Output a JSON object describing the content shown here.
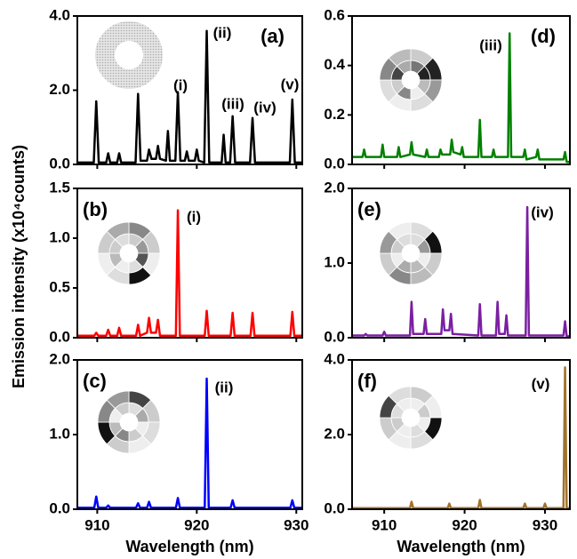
{
  "y_label": "Emission intensity (x10⁴counts)",
  "chart_data": [
    {
      "type": "line",
      "panel_label": "(a)",
      "color": "#000000",
      "xlim": [
        908,
        930.6
      ],
      "xticks": [
        910,
        920,
        930
      ],
      "ylim": [
        0,
        4
      ],
      "yticks": [
        {
          "value": 0,
          "label": "0.0"
        },
        {
          "value": 2,
          "label": "2.0"
        },
        {
          "value": 4,
          "label": "4.0"
        }
      ],
      "annotations": [
        "(i)",
        "(ii)",
        "(iii)",
        "(iv)",
        "(v)"
      ],
      "x": [
        908.0,
        909.65,
        909.9,
        910.15,
        910.9,
        911.1,
        911.3,
        912.0,
        912.2,
        912.4,
        913.85,
        914.1,
        914.35,
        915.0,
        915.2,
        915.45,
        915.9,
        916.1,
        916.3,
        916.9,
        917.1,
        917.3,
        917.85,
        918.1,
        918.35,
        918.8,
        919.0,
        919.2,
        919.8,
        920.0,
        920.2,
        920.75,
        921.0,
        921.25,
        922.5,
        922.7,
        922.9,
        923.35,
        923.6,
        923.85,
        925.35,
        925.6,
        925.85,
        929.35,
        929.6,
        929.85,
        930.6
      ],
      "values": [
        0.05,
        0.05,
        1.7,
        0.05,
        0.05,
        0.3,
        0.05,
        0.05,
        0.3,
        0.05,
        0.05,
        1.9,
        0.1,
        0.1,
        0.4,
        0.15,
        0.15,
        0.5,
        0.15,
        0.1,
        0.9,
        0.1,
        0.1,
        1.95,
        0.1,
        0.1,
        0.35,
        0.1,
        0.1,
        0.4,
        0.1,
        0.05,
        3.6,
        0.05,
        0.05,
        0.8,
        0.05,
        0.05,
        1.3,
        0.05,
        0.05,
        1.25,
        0.05,
        0.05,
        1.75,
        0.05,
        0.05
      ]
    },
    {
      "type": "line",
      "panel_label": "(b)",
      "color": "#ff0000",
      "xlim": [
        908,
        930.6
      ],
      "xticks": [
        910,
        920,
        930
      ],
      "ylim": [
        0,
        1.5
      ],
      "yticks": [
        {
          "value": 0,
          "label": "0.0"
        },
        0.5,
        {
          "value": 1,
          "label": "1.0"
        },
        1.5
      ],
      "annotations": [
        "(i)"
      ],
      "x": [
        908,
        909.7,
        909.9,
        910.1,
        910.9,
        911.1,
        911.3,
        912.0,
        912.2,
        912.4,
        913.9,
        914.1,
        914.3,
        915.0,
        915.2,
        915.4,
        915.9,
        916.1,
        916.3,
        917.9,
        918.1,
        918.3,
        920.8,
        921.0,
        921.2,
        923.4,
        923.6,
        923.8,
        925.4,
        925.6,
        925.8,
        929.4,
        929.6,
        929.8,
        930.6
      ],
      "values": [
        0.02,
        0.02,
        0.05,
        0.02,
        0.02,
        0.08,
        0.02,
        0.02,
        0.1,
        0.02,
        0.02,
        0.13,
        0.02,
        0.05,
        0.2,
        0.05,
        0.05,
        0.18,
        0.02,
        0.02,
        1.28,
        0.02,
        0.02,
        0.27,
        0.02,
        0.02,
        0.25,
        0.02,
        0.02,
        0.25,
        0.02,
        0.02,
        0.26,
        0.02,
        0.02
      ]
    },
    {
      "type": "line",
      "panel_label": "(c)",
      "color": "#0000ff",
      "xlim": [
        908,
        930.6
      ],
      "xticks": [
        910,
        920,
        930
      ],
      "x_label": "Wavelength (nm)",
      "ylim": [
        0,
        2
      ],
      "yticks": [
        {
          "value": 0,
          "label": "0.0"
        },
        {
          "value": 1,
          "label": "1.0"
        },
        {
          "value": 2,
          "label": "2.0"
        }
      ],
      "annotations": [
        "(ii)"
      ],
      "x": [
        908,
        909.7,
        909.9,
        910.1,
        910.9,
        911.1,
        911.3,
        913.9,
        914.1,
        914.3,
        915.0,
        915.2,
        915.4,
        917.9,
        918.1,
        918.3,
        920.8,
        921.0,
        921.2,
        923.4,
        923.6,
        923.8,
        929.4,
        929.6,
        929.8,
        930.6
      ],
      "values": [
        0.02,
        0.02,
        0.17,
        0.02,
        0.02,
        0.05,
        0.02,
        0.02,
        0.08,
        0.02,
        0.02,
        0.1,
        0.02,
        0.02,
        0.15,
        0.02,
        0.02,
        1.75,
        0.02,
        0.02,
        0.12,
        0.02,
        0.02,
        0.12,
        0.02,
        0.02
      ]
    },
    {
      "type": "line",
      "panel_label": "(d)",
      "color": "#008000",
      "xlim": [
        906,
        933.1
      ],
      "xticks": [
        910,
        920,
        930
      ],
      "ylim": [
        0,
        0.6
      ],
      "yticks": [
        {
          "value": 0,
          "label": "0.0"
        },
        0.2,
        0.4,
        0.6
      ],
      "annotations": [
        "(iii)"
      ],
      "x": [
        906,
        907.3,
        907.5,
        907.7,
        909.6,
        909.8,
        910.0,
        911.6,
        911.8,
        912.0,
        913.2,
        913.4,
        913.6,
        915.1,
        915.3,
        915.5,
        916.8,
        917.0,
        917.2,
        918.2,
        918.4,
        918.6,
        919.5,
        919.7,
        919.9,
        921.7,
        921.9,
        922.1,
        923.4,
        923.6,
        923.8,
        925.4,
        925.6,
        925.8,
        927.3,
        927.5,
        927.7,
        928.9,
        929.1,
        929.3,
        932.3,
        932.5,
        932.7,
        933.1
      ],
      "values": [
        0.03,
        0.03,
        0.06,
        0.03,
        0.03,
        0.08,
        0.03,
        0.03,
        0.07,
        0.03,
        0.04,
        0.09,
        0.04,
        0.03,
        0.06,
        0.03,
        0.03,
        0.06,
        0.04,
        0.04,
        0.1,
        0.05,
        0.04,
        0.07,
        0.03,
        0.03,
        0.18,
        0.03,
        0.03,
        0.06,
        0.03,
        0.03,
        0.53,
        0.03,
        0.03,
        0.06,
        0.02,
        0.03,
        0.06,
        0.02,
        0.02,
        0.05,
        0.01,
        0.01
      ]
    },
    {
      "type": "line",
      "panel_label": "(e)",
      "color": "#7b1fa2",
      "xlim": [
        906,
        933.1
      ],
      "xticks": [
        910,
        920,
        930
      ],
      "ylim": [
        0,
        2
      ],
      "yticks": [
        {
          "value": 0,
          "label": "0.0"
        },
        {
          "value": 1,
          "label": "1.0"
        },
        {
          "value": 2,
          "label": "2.0"
        }
      ],
      "annotations": [
        "(iv)"
      ],
      "x": [
        906,
        907.5,
        907.7,
        907.9,
        909.8,
        910.0,
        910.2,
        913.2,
        913.4,
        913.6,
        914.9,
        915.1,
        915.3,
        917.1,
        917.3,
        917.5,
        918.1,
        918.3,
        918.5,
        921.7,
        921.9,
        922.1,
        923.9,
        924.1,
        924.3,
        925.0,
        925.2,
        925.4,
        927.6,
        927.8,
        928.0,
        932.3,
        932.5,
        932.7,
        933.1
      ],
      "values": [
        0.03,
        0.03,
        0.05,
        0.03,
        0.03,
        0.08,
        0.03,
        0.03,
        0.48,
        0.05,
        0.05,
        0.25,
        0.05,
        0.05,
        0.38,
        0.1,
        0.1,
        0.32,
        0.05,
        0.03,
        0.45,
        0.03,
        0.03,
        0.48,
        0.05,
        0.05,
        0.3,
        0.03,
        0.03,
        1.75,
        0.03,
        0.03,
        0.22,
        0.02,
        0.02
      ]
    },
    {
      "type": "line",
      "panel_label": "(f)",
      "color": "#a0722a",
      "xlim": [
        906,
        933.1
      ],
      "xticks": [
        910,
        920,
        930
      ],
      "x_label": "Wavelength (nm)",
      "ylim": [
        0,
        4
      ],
      "yticks": [
        {
          "value": 0,
          "label": "0.0"
        },
        {
          "value": 2,
          "label": "2.0"
        },
        {
          "value": 4,
          "label": "4.0"
        }
      ],
      "annotations": [
        "(v)"
      ],
      "x": [
        906,
        913.2,
        913.4,
        913.6,
        917.9,
        918.1,
        918.3,
        921.7,
        921.9,
        922.1,
        927.3,
        927.5,
        927.7,
        929.8,
        930.0,
        930.2,
        932.3,
        932.5,
        932.7,
        933.1
      ],
      "values": [
        0.03,
        0.03,
        0.2,
        0.03,
        0.03,
        0.15,
        0.03,
        0.03,
        0.25,
        0.03,
        0.03,
        0.15,
        0.03,
        0.03,
        0.15,
        0.03,
        0.03,
        3.8,
        0.03,
        0.03
      ]
    }
  ]
}
